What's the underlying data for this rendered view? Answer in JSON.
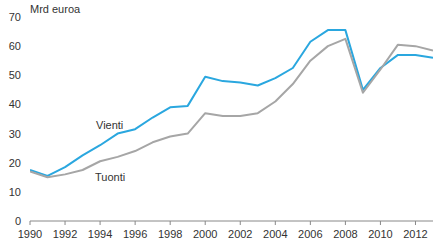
{
  "chart_data": {
    "type": "line",
    "y_label": "Mrd euroa",
    "x": [
      1990,
      1991,
      1992,
      1993,
      1994,
      1995,
      1996,
      1997,
      1998,
      1999,
      2000,
      2001,
      2002,
      2003,
      2004,
      2005,
      2006,
      2007,
      2008,
      2009,
      2010,
      2011,
      2012,
      2013
    ],
    "series": [
      {
        "name": "Vienti",
        "color": "#2aa7df",
        "values": [
          17.5,
          15.5,
          18.5,
          22.5,
          26,
          30,
          31.5,
          35.5,
          39,
          39.5,
          49.5,
          48,
          47.5,
          46.5,
          49,
          52.5,
          61.5,
          65.5,
          65.5,
          45,
          52.5,
          57,
          57,
          56
        ]
      },
      {
        "name": "Tuonti",
        "color": "#a6a6a6",
        "values": [
          17,
          15,
          16,
          17.5,
          20.5,
          22,
          24,
          27,
          29,
          30,
          37,
          36,
          36,
          37,
          41,
          47,
          55,
          60,
          62.5,
          44,
          52,
          60.5,
          60,
          58.5
        ]
      }
    ],
    "xlim": [
      1990,
      2013
    ],
    "xticks": [
      1990,
      1992,
      1994,
      1996,
      1998,
      2000,
      2002,
      2004,
      2006,
      2008,
      2010,
      2012
    ],
    "ylim": [
      0,
      70
    ],
    "yticks": [
      0,
      10,
      20,
      30,
      40,
      50,
      60,
      70
    ],
    "grid": false
  }
}
